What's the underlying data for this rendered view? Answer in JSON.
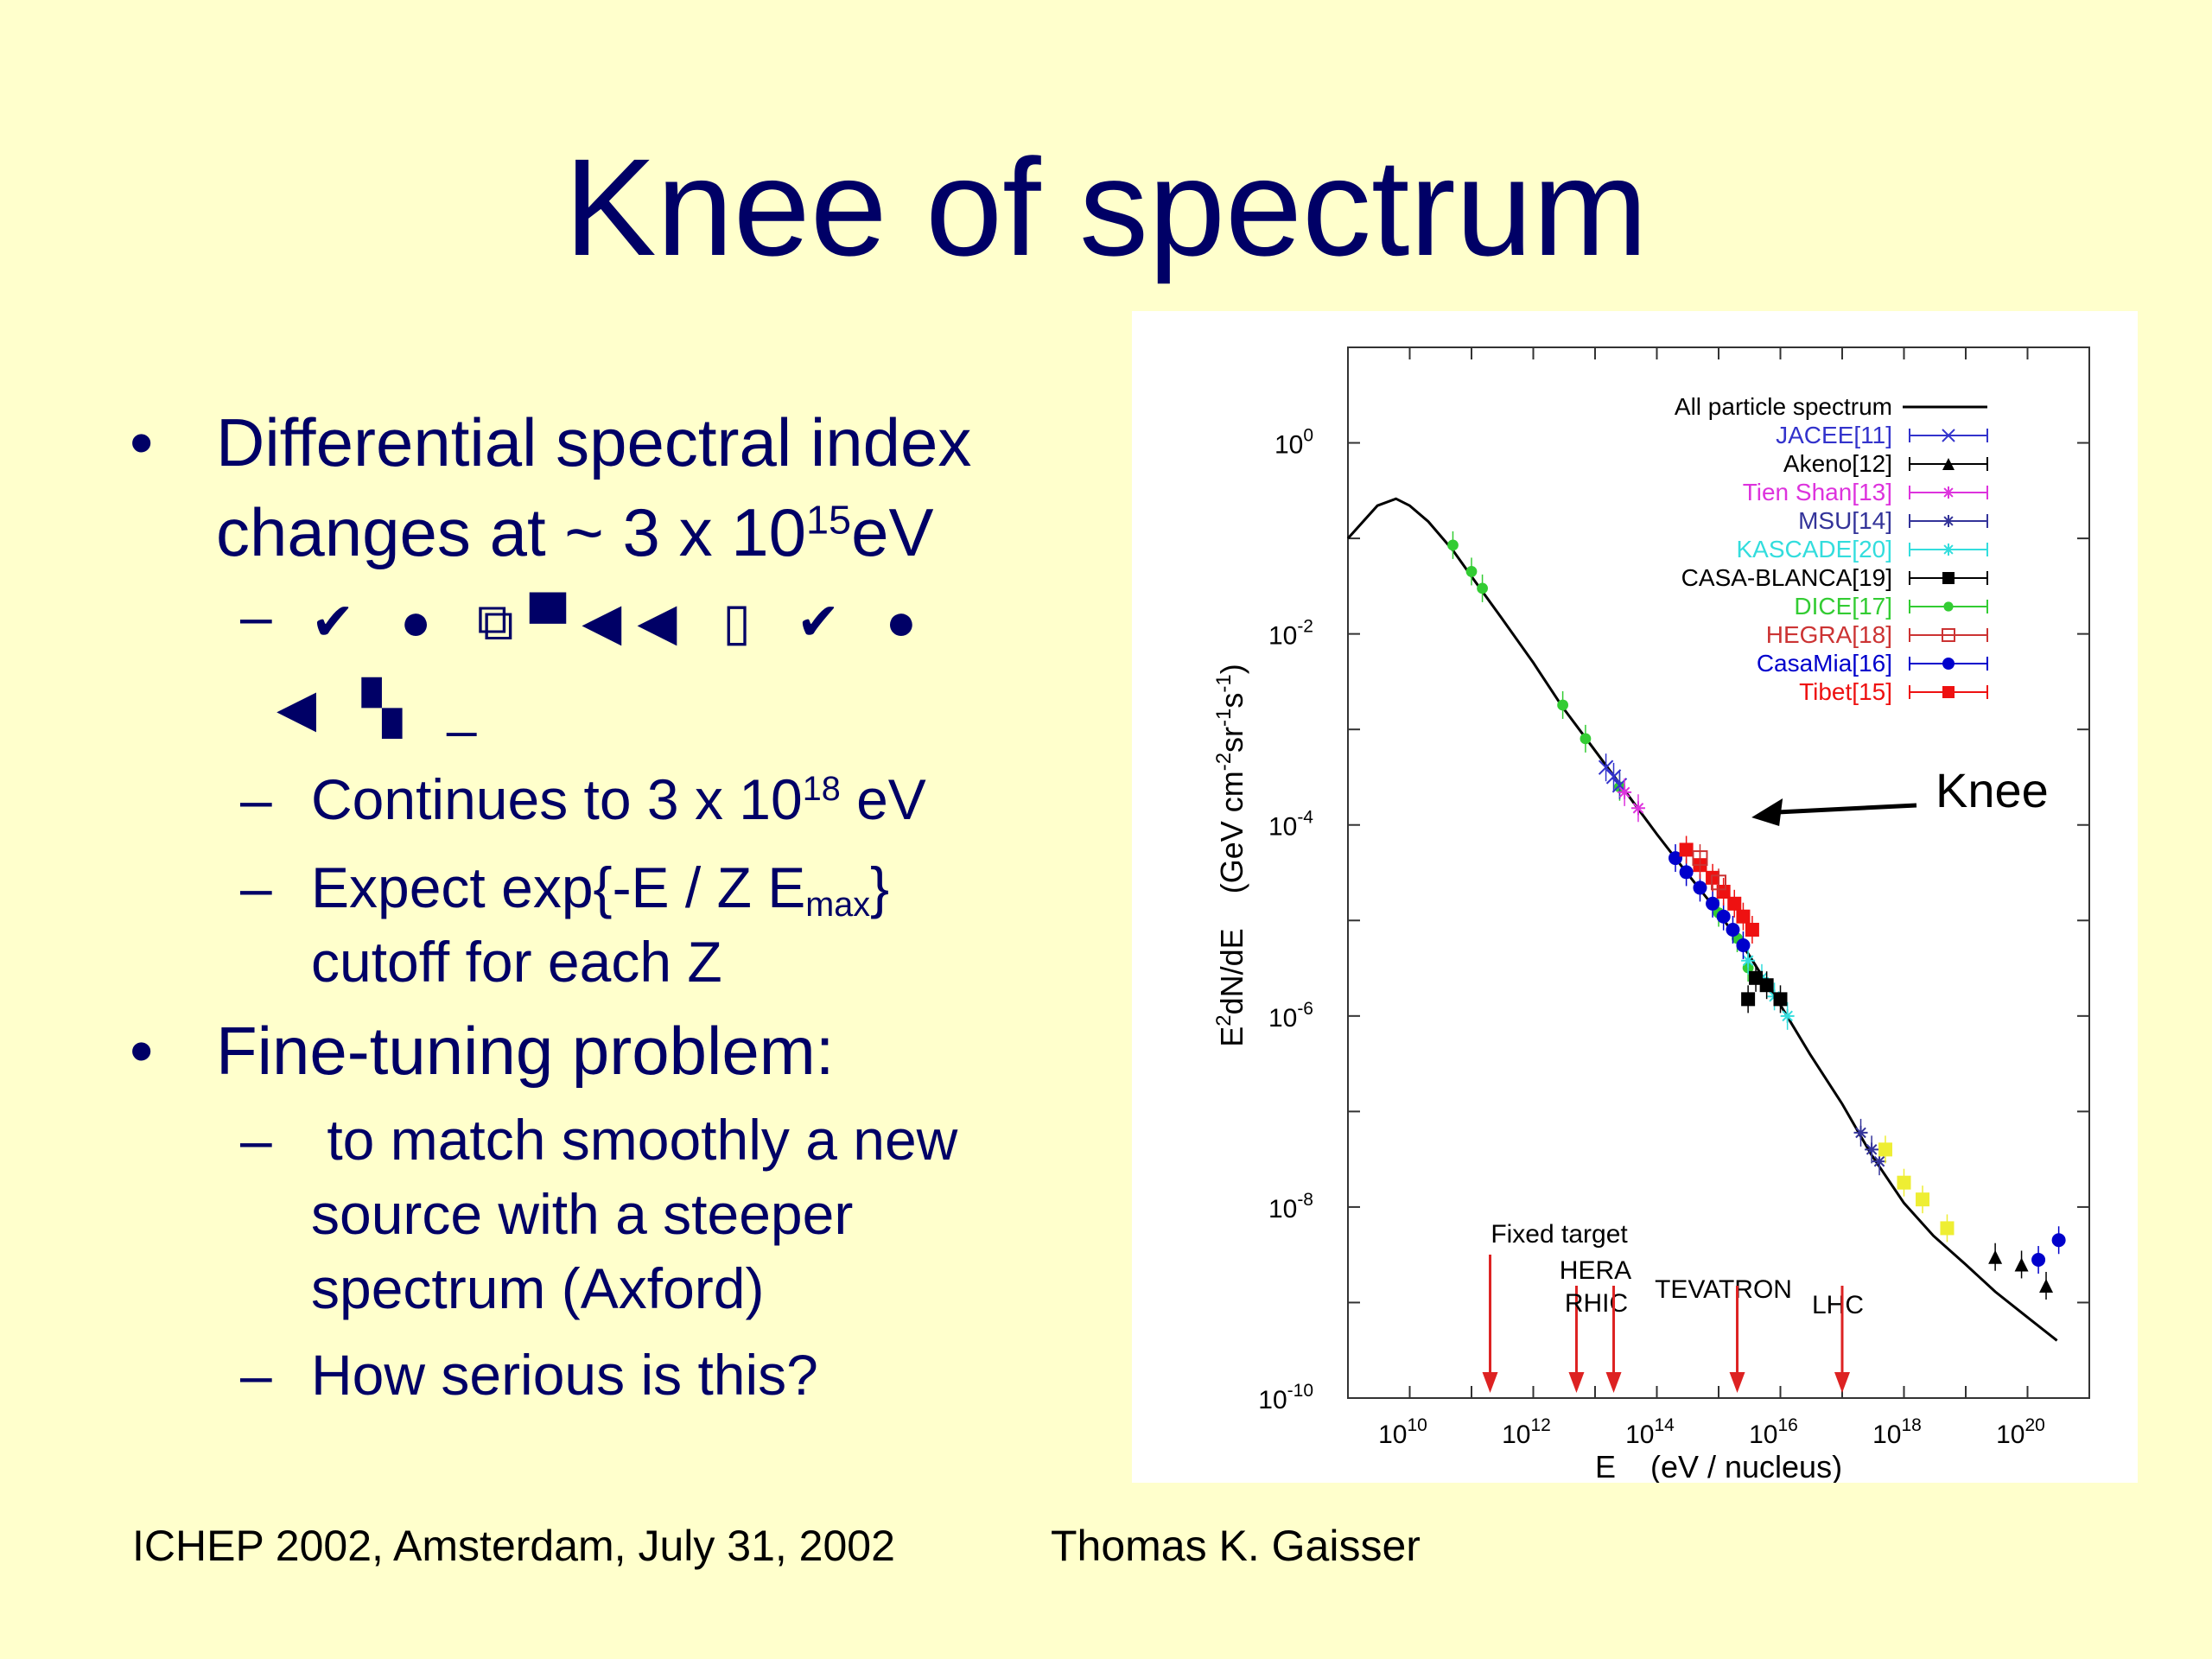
{
  "slide": {
    "title": "Knee of spectrum",
    "bullet1": {
      "marker": "•",
      "line1": "Differential spectral index",
      "line2_pre": "changes at ~ 3 x 10",
      "line2_sup": "15",
      "line2_post": "eV"
    },
    "sub1": {
      "marker": "–",
      "glyphs_line1": "✔ ● ⧉▀◀◀ ▯ ✔ ●",
      "glyphs_line2": "◀ ▚ _"
    },
    "sub2": {
      "marker": "–",
      "pre": "Continues to 3 x 10",
      "sup": "18",
      "post": " eV"
    },
    "sub3": {
      "marker": "–",
      "pre": "Expect exp{-E / Z E",
      "sub": "max",
      "post": "}",
      "line2": "cutoff for each Z"
    },
    "bullet2": {
      "marker": "•",
      "text": "Fine-tuning problem:"
    },
    "sub4": {
      "marker": "–",
      "line1": " to match smoothly a new",
      "line2": "source with a steeper",
      "line3": "spectrum (Axford)"
    },
    "sub5": {
      "marker": "–",
      "text": "How serious is this?"
    },
    "footer_left": "ICHEP 2002, Amsterdam, July 31, 2002",
    "footer_right": "Thomas K. Gaisser"
  },
  "colors": {
    "background": "#ffffcc",
    "text": "#000066",
    "JACEE": "#3333cc",
    "Akeno": "#000000",
    "TienShan": "#dd33dd",
    "MSU": "#333399",
    "KASCADE": "#33dddd",
    "CASABLANCA": "#000000",
    "DICE": "#33cc33",
    "HEGRA": "#cc3333",
    "CasaMia": "#0000cc",
    "Tibet": "#ee1111",
    "Yellow": "#eeee33",
    "arrows": "#dd2222"
  },
  "chart_data": {
    "type": "scatter",
    "x_scale": "log",
    "y_scale": "log",
    "xlim": [
      1000000000.0,
      1e+21
    ],
    "ylim": [
      1e-10,
      10.0
    ],
    "xlabel": "E    (eV / nucleus)",
    "ylabel_main": "E",
    "ylabel_sup1": "2",
    "ylabel_rest": "dN/dE    (GeV cm",
    "ylabel_sup2": "-2",
    "ylabel_sr": "sr",
    "ylabel_sup3": "-1",
    "ylabel_s": "s",
    "ylabel_sup4": "-1",
    "ylabel_end": ")",
    "x_ticks": [
      {
        "v": 10000000000.0,
        "base": "10",
        "exp": "10"
      },
      {
        "v": 1000000000000.0,
        "base": "10",
        "exp": "12"
      },
      {
        "v": 100000000000000.0,
        "base": "10",
        "exp": "14"
      },
      {
        "v": 1e+16,
        "base": "10",
        "exp": "16"
      },
      {
        "v": 1e+18,
        "base": "10",
        "exp": "18"
      },
      {
        "v": 1e+20,
        "base": "10",
        "exp": "20"
      }
    ],
    "y_ticks": [
      {
        "v": 1,
        "base": "10",
        "exp": "0"
      },
      {
        "v": 0.01,
        "base": "10",
        "exp": "-2"
      },
      {
        "v": 0.0001,
        "base": "10",
        "exp": "-4"
      },
      {
        "v": 1e-06,
        "base": "10",
        "exp": "-6"
      },
      {
        "v": 1e-08,
        "base": "10",
        "exp": "-8"
      },
      {
        "v": 1e-10,
        "base": "10",
        "exp": "-10"
      }
    ],
    "curve": {
      "name": "All particle spectrum",
      "points": [
        [
          1000000000.0,
          0.1
        ],
        [
          3000000000.0,
          0.22
        ],
        [
          6000000000.0,
          0.26
        ],
        [
          10000000000.0,
          0.22
        ],
        [
          20000000000.0,
          0.15
        ],
        [
          50000000000.0,
          0.075
        ],
        [
          100000000000.0,
          0.04
        ],
        [
          300000000000.0,
          0.015
        ],
        [
          1000000000000.0,
          0.005
        ],
        [
          3000000000000.0,
          0.0017
        ],
        [
          10000000000000.0,
          0.0006
        ],
        [
          30000000000000.0,
          0.00023
        ],
        [
          100000000000000.0,
          8e-05
        ],
        [
          300000000000000.0,
          3.2e-05
        ],
        [
          1000000000000000.0,
          1.2e-05
        ],
        [
          3000000000000000.0,
          4.5e-06
        ],
        [
          1e+16,
          1.3e-06
        ],
        [
          3e+16,
          4e-07
        ],
        [
          1e+17,
          1.2e-07
        ],
        [
          3e+17,
          3.5e-08
        ],
        [
          1e+18,
          1.1e-08
        ],
        [
          3e+18,
          5e-09
        ],
        [
          1e+19,
          2.5e-09
        ],
        [
          3e+19,
          1.3e-09
        ],
        [
          1e+20,
          7e-10
        ],
        [
          3e+20,
          4e-10
        ]
      ]
    },
    "legend": [
      {
        "label": "All particle spectrum",
        "color": "#000000",
        "marker": "line"
      },
      {
        "label": "JACEE[11]",
        "color": "#3333cc",
        "marker": "x"
      },
      {
        "label": "Akeno[12]",
        "color": "#000000",
        "marker": "triangle"
      },
      {
        "label": "Tien Shan[13]",
        "color": "#dd33dd",
        "marker": "star"
      },
      {
        "label": "MSU[14]",
        "color": "#333399",
        "marker": "star"
      },
      {
        "label": "KASCADE[20]",
        "color": "#33dddd",
        "marker": "star"
      },
      {
        "label": "CASA-BLANCA[19]",
        "color": "#000000",
        "marker": "square"
      },
      {
        "label": "DICE[17]",
        "color": "#33cc33",
        "marker": "dot"
      },
      {
        "label": "HEGRA[18]",
        "color": "#cc3333",
        "marker": "open-square"
      },
      {
        "label": "CasaMia[16]",
        "color": "#0000cc",
        "marker": "circle"
      },
      {
        "label": "Tibet[15]",
        "color": "#ee1111",
        "marker": "square"
      }
    ],
    "series": [
      {
        "name": "DICE[17]",
        "color": "#33cc33",
        "shape": "dot",
        "points": [
          [
            50000000000.0,
            0.085
          ],
          [
            100000000000.0,
            0.045
          ],
          [
            150000000000.0,
            0.03
          ],
          [
            3000000000000.0,
            0.0018
          ],
          [
            7000000000000.0,
            0.0008
          ],
          [
            25000000000000.0,
            0.00025
          ],
          [
            1000000000000000.0,
            1.2e-05
          ],
          [
            2000000000000000.0,
            6.5e-06
          ],
          [
            3000000000000000.0,
            3.2e-06
          ]
        ]
      },
      {
        "name": "JACEE[11]",
        "color": "#3333cc",
        "shape": "x",
        "points": [
          [
            15000000000000.0,
            0.0004
          ],
          [
            20000000000000.0,
            0.00032
          ],
          [
            25000000000000.0,
            0.00026
          ]
        ]
      },
      {
        "name": "Tien Shan[13]",
        "color": "#dd33dd",
        "shape": "star",
        "points": [
          [
            30000000000000.0,
            0.00022
          ],
          [
            50000000000000.0,
            0.00015
          ]
        ]
      },
      {
        "name": "MSU[14]",
        "color": "#333399",
        "shape": "star",
        "points": [
          [
            2e+17,
            6e-08
          ],
          [
            3e+17,
            4e-08
          ],
          [
            4e+17,
            3e-08
          ]
        ]
      },
      {
        "name": "KASCADE[20]",
        "color": "#33dddd",
        "shape": "star",
        "points": [
          [
            3000000000000000.0,
            3.8e-06
          ],
          [
            5000000000000000.0,
            2.5e-06
          ],
          [
            8000000000000000.0,
            1.6e-06
          ],
          [
            1.3e+16,
            1e-06
          ]
        ]
      },
      {
        "name": "CASA-BLANCA[19]",
        "color": "#000000",
        "shape": "square",
        "points": [
          [
            3000000000000000.0,
            1.5e-06
          ],
          [
            4000000000000000.0,
            2.5e-06
          ],
          [
            6000000000000000.0,
            2.1e-06
          ],
          [
            1e+16,
            1.5e-06
          ]
        ]
      },
      {
        "name": "CasaMia[16]",
        "color": "#0000cc",
        "shape": "circle",
        "points": [
          [
            200000000000000.0,
            4.5e-05
          ],
          [
            300000000000000.0,
            3.2e-05
          ],
          [
            500000000000000.0,
            2.2e-05
          ],
          [
            800000000000000.0,
            1.5e-05
          ],
          [
            1200000000000000.0,
            1.1e-05
          ],
          [
            1700000000000000.0,
            8e-06
          ],
          [
            2500000000000000.0,
            5.5e-06
          ],
          [
            3.2e+20,
            4.5e-09
          ],
          [
            1.5e+20,
            2.8e-09
          ]
        ]
      },
      {
        "name": "Tibet[15]",
        "color": "#ee1111",
        "shape": "square",
        "points": [
          [
            300000000000000.0,
            5.5e-05
          ],
          [
            500000000000000.0,
            3.8e-05
          ],
          [
            800000000000000.0,
            2.8e-05
          ],
          [
            1200000000000000.0,
            2e-05
          ],
          [
            1800000000000000.0,
            1.5e-05
          ],
          [
            2500000000000000.0,
            1.1e-05
          ],
          [
            3500000000000000.0,
            8e-06
          ]
        ]
      },
      {
        "name": "HEGRA[18]",
        "color": "#cc3333",
        "shape": "open-square",
        "points": [
          [
            500000000000000.0,
            4.5e-05
          ],
          [
            1000000000000000.0,
            2.5e-05
          ]
        ]
      },
      {
        "name": "Akeno[12]",
        "color": "#000000",
        "shape": "triangle",
        "points": [
          [
            3e+19,
            3e-09
          ],
          [
            8e+19,
            2.5e-09
          ],
          [
            2e+20,
            1.5e-09
          ]
        ]
      },
      {
        "name": "Yellow",
        "color": "#eeee33",
        "shape": "square",
        "points": [
          [
            5e+17,
            4e-08
          ],
          [
            1e+18,
            1.8e-08
          ],
          [
            2e+18,
            1.2e-08
          ],
          [
            5e+18,
            6e-09
          ]
        ]
      }
    ],
    "annotation": {
      "text": "Knee",
      "x": 3000000000000000.0,
      "y": 0.00012
    },
    "accelerators": [
      {
        "label": "Fixed target",
        "x": 200000000000.0
      },
      {
        "label": "HERA",
        "x": 5000000000000.0
      },
      {
        "label": "RHIC",
        "x": 20000000000000.0
      },
      {
        "label": "TEVATRON",
        "x": 2000000000000000.0
      },
      {
        "label": "LHC",
        "x": 1e+17
      }
    ]
  }
}
